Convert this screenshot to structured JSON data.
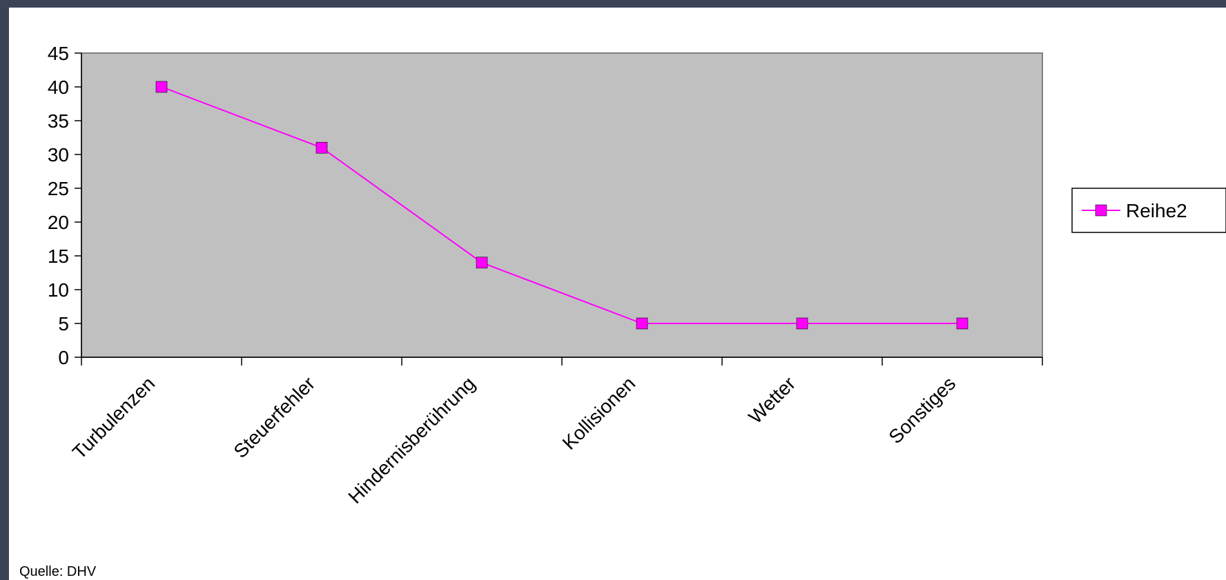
{
  "chart_data": {
    "type": "line",
    "categories": [
      "Turbulenzen",
      "Steuerfehler",
      "Hindernisberührung",
      "Kollisionen",
      "Wetter",
      "Sonstiges"
    ],
    "series": [
      {
        "name": "Reihe2",
        "values": [
          40,
          31,
          14,
          5,
          5,
          5
        ],
        "color": "#ff00ff",
        "marker": "square"
      }
    ],
    "ylim": [
      0,
      45
    ],
    "yticks": [
      0,
      5,
      10,
      15,
      20,
      25,
      30,
      35,
      40,
      45
    ],
    "grid": false,
    "plot_background": "#c0c0c0",
    "legend": "right"
  },
  "source": "Quelle: DHV"
}
